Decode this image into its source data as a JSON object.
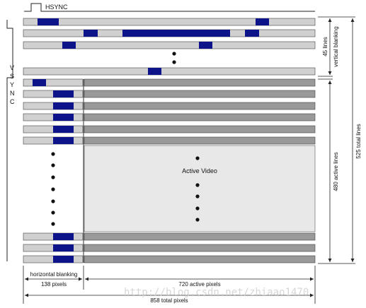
{
  "hsync_label": "HSYNC",
  "vsync_letters": [
    "V",
    "S",
    "Y",
    "N",
    "C"
  ],
  "active_video_label": "Active Video",
  "horizontal_blanking_label": "horizontal blanking",
  "horizontal_blanking_pixels": "138 pixels",
  "active_pixels_label": "720 active pixels",
  "total_pixels_label": "858 total pixels",
  "vertical_blanking_lines": "45 lines",
  "vertical_blanking_label": "vertical blanking",
  "active_lines_label": "480 active lines",
  "total_lines_label": "525 total lines",
  "watermark": "http://blog.csdn.net/zhiaao1470",
  "colors": {
    "blanking_line": "#d0d0d0",
    "active_line": "#999999",
    "active_area": "#e8e8e8",
    "sync_pulse": "#0d148a",
    "outline": "#333333"
  }
}
